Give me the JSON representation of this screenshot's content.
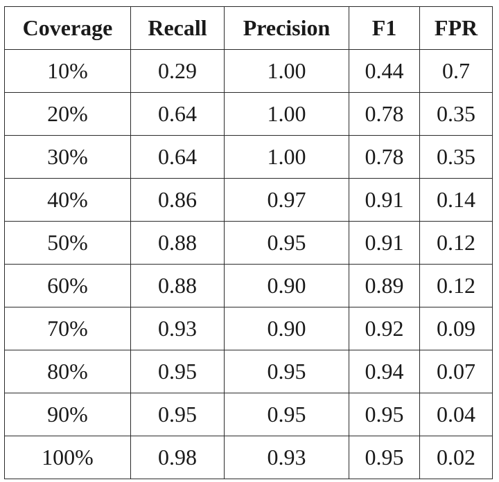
{
  "table": {
    "headers": [
      "Coverage",
      "Recall",
      "Precision",
      "F1",
      "FPR"
    ],
    "rows": [
      [
        "10%",
        "0.29",
        "1.00",
        "0.44",
        "0.7"
      ],
      [
        "20%",
        "0.64",
        "1.00",
        "0.78",
        "0.35"
      ],
      [
        "30%",
        "0.64",
        "1.00",
        "0.78",
        "0.35"
      ],
      [
        "40%",
        "0.86",
        "0.97",
        "0.91",
        "0.14"
      ],
      [
        "50%",
        "0.88",
        "0.95",
        "0.91",
        "0.12"
      ],
      [
        "60%",
        "0.88",
        "0.90",
        "0.89",
        "0.12"
      ],
      [
        "70%",
        "0.93",
        "0.90",
        "0.92",
        "0.09"
      ],
      [
        "80%",
        "0.95",
        "0.95",
        "0.94",
        "0.07"
      ],
      [
        "90%",
        "0.95",
        "0.95",
        "0.95",
        "0.04"
      ],
      [
        "100%",
        "0.98",
        "0.93",
        "0.95",
        "0.02"
      ]
    ]
  }
}
